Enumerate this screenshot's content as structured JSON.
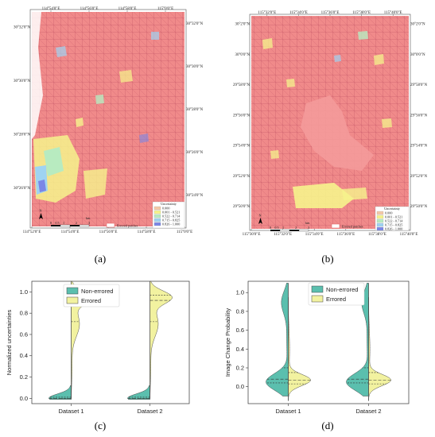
{
  "panels": [
    {
      "label": "(a)",
      "top_ticks": [
        "114°54'0\"E",
        "114°56'0\"E",
        "114°58'0\"E",
        "115°0'0\"E"
      ],
      "bottom_ticks": [
        "114°52'0\"E",
        "114°54'0\"E",
        "114°56'0\"E",
        "114°58'0\"E",
        "115°0'0\"E"
      ],
      "left_ticks": [
        "30°32'0\"N",
        "30°30'0\"N",
        "30°28'0\"N",
        "30°26'0\"N"
      ],
      "right_ticks": [
        "30°32'0\"N",
        "30°30'0\"N",
        "30°28'0\"N",
        "30°26'0\"N",
        "30°24'0\"N"
      ],
      "scale_labels": [
        "0",
        "0.5",
        "1",
        "2",
        "3"
      ],
      "scale_unit": "km",
      "north_label": "N",
      "errored_label": "Errored patches",
      "uncertainty_title": "Uncertainty",
      "uncertainty_classes": [
        {
          "label": "0.000",
          "color": "#f4c9a8"
        },
        {
          "label": "0.001 - 0.521",
          "color": "#f6f38c"
        },
        {
          "label": "0.522 - 0.714",
          "color": "#b8ebc0"
        },
        {
          "label": "0.715 - 0.825",
          "color": "#9fd3f2"
        },
        {
          "label": "0.826 - 1.000",
          "color": "#7b87e6"
        }
      ]
    },
    {
      "label": "(b)",
      "top_ticks": [
        "115°32'0\"E",
        "115°34'0\"E",
        "115°36'0\"E",
        "115°38'0\"E",
        "115°40'0\"E"
      ],
      "bottom_ticks": [
        "115°30'0\"E",
        "115°32'0\"E",
        "115°34'0\"E",
        "115°36'0\"E",
        "115°38'0\"E",
        "115°40'0\"E"
      ],
      "left_ticks": [
        "30°2'0\"N",
        "30°0'0\"N",
        "29°58'0\"N",
        "29°56'0\"N",
        "29°54'0\"N",
        "29°52'0\"N",
        "29°50'0\"N"
      ],
      "right_ticks": [
        "30°2'0\"N",
        "30°0'0\"N",
        "29°58'0\"N",
        "29°56'0\"N",
        "29°54'0\"N",
        "29°52'0\"N",
        "29°50'0\"N"
      ],
      "scale_labels": [
        "0",
        "0.5",
        "1",
        "2",
        "3"
      ],
      "scale_unit": "km",
      "north_label": "N",
      "errored_label": "Errored patches",
      "uncertainty_title": "Uncertainty",
      "uncertainty_classes": [
        {
          "label": "0.000",
          "color": "#f4c9a8"
        },
        {
          "label": "0.001 - 0.521",
          "color": "#f6f38c"
        },
        {
          "label": "0.522 - 0.714",
          "color": "#b8ebc0"
        },
        {
          "label": "0.715 - 0.825",
          "color": "#9fd3f2"
        },
        {
          "label": "0.826 - 1.000",
          "color": "#7b87e6"
        }
      ]
    },
    {
      "label": "(c)"
    },
    {
      "label": "(d)"
    }
  ],
  "colors": {
    "map_base": "#f08a8a",
    "non_errored": "#5bbfae",
    "errored": "#f2f2a0"
  },
  "chart_data": [
    {
      "type": "violin",
      "title": "",
      "xlabel": "",
      "ylabel": "Normalized uncertainties",
      "categories": [
        "Dataset 1",
        "Dataset 2"
      ],
      "ylim": [
        -0.05,
        1.1
      ],
      "yticks": [
        "0.0",
        "0.2",
        "0.4",
        "0.6",
        "0.8",
        "1.0"
      ],
      "legend": {
        "position": "top-left",
        "entries": [
          "Non-errored",
          "Errored"
        ]
      },
      "series": [
        {
          "name": "Non-errored",
          "min": 0.0,
          "q1": 0.0,
          "median": 0.0,
          "q3": 0.01,
          "max": 0.1
        },
        {
          "name": "Errored",
          "min": 0.0,
          "q1": 0.72,
          "median": 0.92,
          "q3": 0.97,
          "max": 1.1
        }
      ]
    },
    {
      "type": "violin",
      "title": "",
      "xlabel": "",
      "ylabel": "Image Change Probability",
      "categories": [
        "Dataset 1",
        "Dataset 2"
      ],
      "ylim": [
        -0.18,
        1.12
      ],
      "yticks": [
        "0.0",
        "0.2",
        "0.4",
        "0.6",
        "0.8",
        "1.0"
      ],
      "legend": {
        "position": "top-center",
        "entries": [
          "Non-errored",
          "Errored"
        ]
      },
      "series": [
        {
          "name": "Non-errored",
          "min": -0.1,
          "q1": 0.04,
          "median": 0.08,
          "q3": 0.2,
          "max": 1.1
        },
        {
          "name": "Errored",
          "min": -0.15,
          "q1": 0.03,
          "median": 0.07,
          "q3": 0.15,
          "max": 0.95
        }
      ]
    }
  ]
}
